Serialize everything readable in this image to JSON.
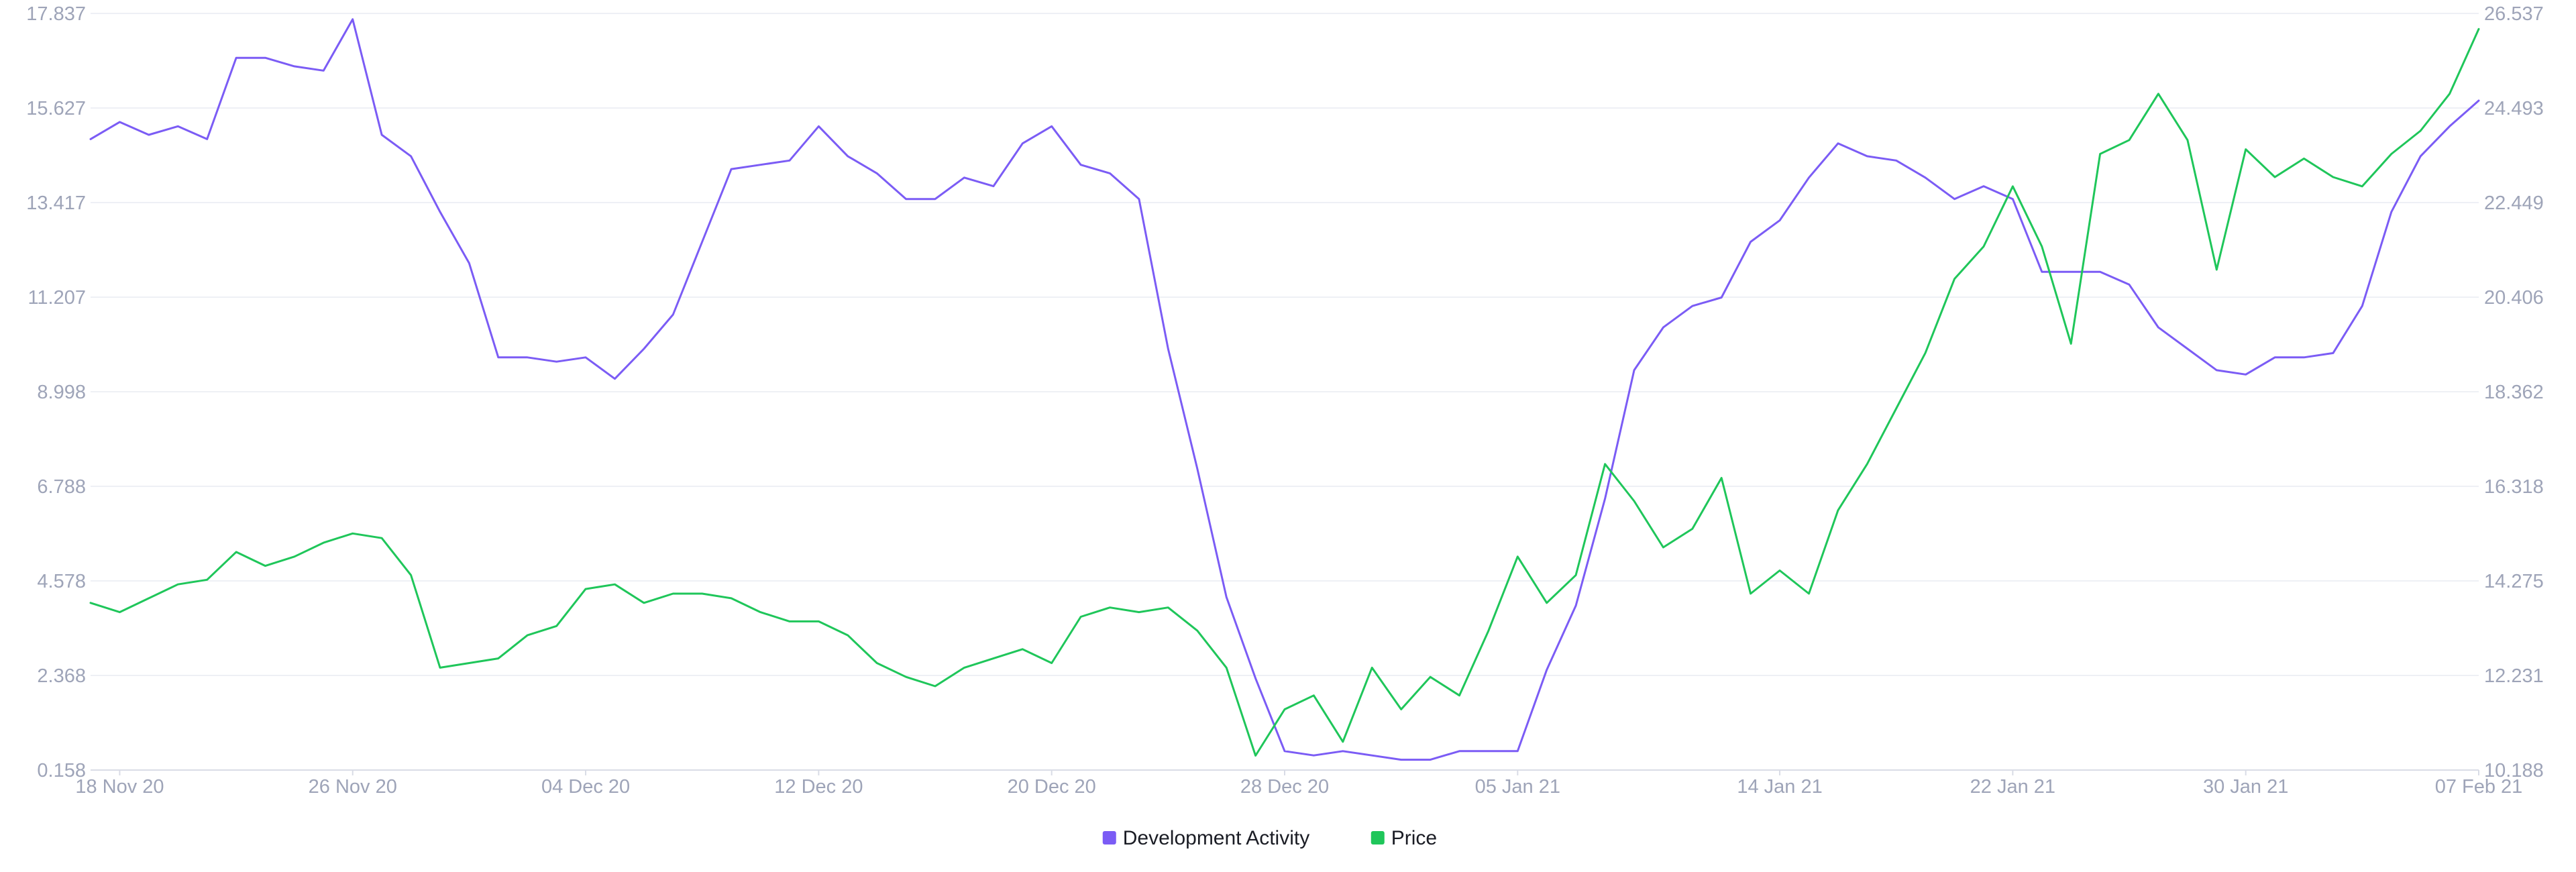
{
  "chart_data": {
    "type": "line",
    "x_axis": {
      "type": "date",
      "range": [
        "2020-11-17",
        "2021-02-07"
      ],
      "ticks": [
        {
          "date": "2020-11-18",
          "label": "18 Nov 20"
        },
        {
          "date": "2020-11-26",
          "label": "26 Nov 20"
        },
        {
          "date": "2020-12-04",
          "label": "04 Dec 20"
        },
        {
          "date": "2020-12-12",
          "label": "12 Dec 20"
        },
        {
          "date": "2020-12-20",
          "label": "20 Dec 20"
        },
        {
          "date": "2020-12-28",
          "label": "28 Dec 20"
        },
        {
          "date": "2021-01-05",
          "label": "05 Jan 21"
        },
        {
          "date": "2021-01-14",
          "label": "14 Jan 21"
        },
        {
          "date": "2021-01-22",
          "label": "22 Jan 21"
        },
        {
          "date": "2021-01-30",
          "label": "30 Jan 21"
        },
        {
          "date": "2021-02-07",
          "label": "07 Feb 21"
        }
      ]
    },
    "y_left": {
      "range": [
        0.158,
        17.837
      ],
      "tick_labels": [
        "0.158",
        "2.368",
        "4.578",
        "6.788",
        "8.998",
        "11.207",
        "13.417",
        "15.627",
        "17.837"
      ]
    },
    "y_right": {
      "range": [
        10.188,
        26.537
      ],
      "tick_labels": [
        "10.188",
        "12.231",
        "14.275",
        "16.318",
        "18.362",
        "20.406",
        "22.449",
        "24.493",
        "26.537"
      ]
    },
    "grid": "horizontal",
    "legend_position": "bottom-center",
    "series": [
      {
        "name": "Development Activity",
        "axis": "left",
        "color": "#7b5cf5",
        "points": [
          [
            "2020-11-17",
            14.9
          ],
          [
            "2020-11-18",
            15.3
          ],
          [
            "2020-11-19",
            15.0
          ],
          [
            "2020-11-20",
            15.2
          ],
          [
            "2020-11-21",
            14.9
          ],
          [
            "2020-11-22",
            16.8
          ],
          [
            "2020-11-23",
            16.8
          ],
          [
            "2020-11-24",
            16.6
          ],
          [
            "2020-11-25",
            16.5
          ],
          [
            "2020-11-26",
            17.7
          ],
          [
            "2020-11-27",
            15.0
          ],
          [
            "2020-11-28",
            14.5
          ],
          [
            "2020-11-29",
            13.2
          ],
          [
            "2020-11-30",
            12.0
          ],
          [
            "2020-12-01",
            9.8
          ],
          [
            "2020-12-02",
            9.8
          ],
          [
            "2020-12-03",
            9.7
          ],
          [
            "2020-12-04",
            9.8
          ],
          [
            "2020-12-05",
            9.3
          ],
          [
            "2020-12-06",
            10.0
          ],
          [
            "2020-12-07",
            10.8
          ],
          [
            "2020-12-08",
            12.5
          ],
          [
            "2020-12-09",
            14.2
          ],
          [
            "2020-12-10",
            14.3
          ],
          [
            "2020-12-11",
            14.4
          ],
          [
            "2020-12-12",
            15.2
          ],
          [
            "2020-12-13",
            14.5
          ],
          [
            "2020-12-14",
            14.1
          ],
          [
            "2020-12-15",
            13.5
          ],
          [
            "2020-12-16",
            13.5
          ],
          [
            "2020-12-17",
            14.0
          ],
          [
            "2020-12-18",
            13.8
          ],
          [
            "2020-12-19",
            14.8
          ],
          [
            "2020-12-20",
            15.2
          ],
          [
            "2020-12-21",
            14.3
          ],
          [
            "2020-12-22",
            14.1
          ],
          [
            "2020-12-23",
            13.5
          ],
          [
            "2020-12-24",
            10.0
          ],
          [
            "2020-12-25",
            7.2
          ],
          [
            "2020-12-26",
            4.2
          ],
          [
            "2020-12-27",
            2.3
          ],
          [
            "2020-12-28",
            0.6
          ],
          [
            "2020-12-29",
            0.5
          ],
          [
            "2020-12-30",
            0.6
          ],
          [
            "2020-12-31",
            0.5
          ],
          [
            "2021-01-01",
            0.4
          ],
          [
            "2021-01-02",
            0.4
          ],
          [
            "2021-01-03",
            0.6
          ],
          [
            "2021-01-04",
            0.6
          ],
          [
            "2021-01-05",
            0.6
          ],
          [
            "2021-01-06",
            2.5
          ],
          [
            "2021-01-07",
            4.0
          ],
          [
            "2021-01-08",
            6.5
          ],
          [
            "2021-01-09",
            9.5
          ],
          [
            "2021-01-10",
            10.5
          ],
          [
            "2021-01-11",
            11.0
          ],
          [
            "2021-01-12",
            11.2
          ],
          [
            "2021-01-13",
            12.5
          ],
          [
            "2021-01-14",
            13.0
          ],
          [
            "2021-01-15",
            14.0
          ],
          [
            "2021-01-16",
            14.8
          ],
          [
            "2021-01-17",
            14.5
          ],
          [
            "2021-01-18",
            14.4
          ],
          [
            "2021-01-19",
            14.0
          ],
          [
            "2021-01-20",
            13.5
          ],
          [
            "2021-01-21",
            13.8
          ],
          [
            "2021-01-22",
            13.5
          ],
          [
            "2021-01-23",
            11.8
          ],
          [
            "2021-01-24",
            11.8
          ],
          [
            "2021-01-25",
            11.8
          ],
          [
            "2021-01-26",
            11.5
          ],
          [
            "2021-01-27",
            10.5
          ],
          [
            "2021-01-28",
            10.0
          ],
          [
            "2021-01-29",
            9.5
          ],
          [
            "2021-01-30",
            9.4
          ],
          [
            "2021-01-31",
            9.8
          ],
          [
            "2021-02-01",
            9.8
          ],
          [
            "2021-02-02",
            9.9
          ],
          [
            "2021-02-03",
            11.0
          ],
          [
            "2021-02-04",
            13.2
          ],
          [
            "2021-02-05",
            14.5
          ],
          [
            "2021-02-06",
            15.2
          ],
          [
            "2021-02-07",
            15.8
          ]
        ]
      },
      {
        "name": "Price",
        "axis": "right",
        "color": "#1fc65a",
        "points": [
          [
            "2020-11-17",
            13.8
          ],
          [
            "2020-11-18",
            13.6
          ],
          [
            "2020-11-19",
            13.9
          ],
          [
            "2020-11-20",
            14.2
          ],
          [
            "2020-11-21",
            14.3
          ],
          [
            "2020-11-22",
            14.9
          ],
          [
            "2020-11-23",
            14.6
          ],
          [
            "2020-11-24",
            14.8
          ],
          [
            "2020-11-25",
            15.1
          ],
          [
            "2020-11-26",
            15.3
          ],
          [
            "2020-11-27",
            15.2
          ],
          [
            "2020-11-28",
            14.4
          ],
          [
            "2020-11-29",
            12.4
          ],
          [
            "2020-11-30",
            12.5
          ],
          [
            "2020-12-01",
            12.6
          ],
          [
            "2020-12-02",
            13.1
          ],
          [
            "2020-12-03",
            13.3
          ],
          [
            "2020-12-04",
            14.1
          ],
          [
            "2020-12-05",
            14.2
          ],
          [
            "2020-12-06",
            13.8
          ],
          [
            "2020-12-07",
            14.0
          ],
          [
            "2020-12-08",
            14.0
          ],
          [
            "2020-12-09",
            13.9
          ],
          [
            "2020-12-10",
            13.6
          ],
          [
            "2020-12-11",
            13.4
          ],
          [
            "2020-12-12",
            13.4
          ],
          [
            "2020-12-13",
            13.1
          ],
          [
            "2020-12-14",
            12.5
          ],
          [
            "2020-12-15",
            12.2
          ],
          [
            "2020-12-16",
            12.0
          ],
          [
            "2020-12-17",
            12.4
          ],
          [
            "2020-12-18",
            12.6
          ],
          [
            "2020-12-19",
            12.8
          ],
          [
            "2020-12-20",
            12.5
          ],
          [
            "2020-12-21",
            13.5
          ],
          [
            "2020-12-22",
            13.7
          ],
          [
            "2020-12-23",
            13.6
          ],
          [
            "2020-12-24",
            13.7
          ],
          [
            "2020-12-25",
            13.2
          ],
          [
            "2020-12-26",
            12.4
          ],
          [
            "2020-12-27",
            10.5
          ],
          [
            "2020-12-28",
            11.5
          ],
          [
            "2020-12-29",
            11.8
          ],
          [
            "2020-12-30",
            10.8
          ],
          [
            "2020-12-31",
            12.4
          ],
          [
            "2021-01-01",
            11.5
          ],
          [
            "2021-01-02",
            12.2
          ],
          [
            "2021-01-03",
            11.8
          ],
          [
            "2021-01-04",
            13.2
          ],
          [
            "2021-01-05",
            14.8
          ],
          [
            "2021-01-06",
            13.8
          ],
          [
            "2021-01-07",
            14.4
          ],
          [
            "2021-01-08",
            16.8
          ],
          [
            "2021-01-09",
            16.0
          ],
          [
            "2021-01-10",
            15.0
          ],
          [
            "2021-01-11",
            15.4
          ],
          [
            "2021-01-12",
            16.5
          ],
          [
            "2021-01-13",
            14.0
          ],
          [
            "2021-01-14",
            14.5
          ],
          [
            "2021-01-15",
            14.0
          ],
          [
            "2021-01-16",
            15.8
          ],
          [
            "2021-01-17",
            16.8
          ],
          [
            "2021-01-18",
            18.0
          ],
          [
            "2021-01-19",
            19.2
          ],
          [
            "2021-01-20",
            20.8
          ],
          [
            "2021-01-21",
            21.5
          ],
          [
            "2021-01-22",
            22.8
          ],
          [
            "2021-01-23",
            21.5
          ],
          [
            "2021-01-24",
            19.4
          ],
          [
            "2021-01-25",
            23.5
          ],
          [
            "2021-01-26",
            23.8
          ],
          [
            "2021-01-27",
            24.8
          ],
          [
            "2021-01-28",
            23.8
          ],
          [
            "2021-01-29",
            21.0
          ],
          [
            "2021-01-30",
            23.6
          ],
          [
            "2021-01-31",
            23.0
          ],
          [
            "2021-02-01",
            23.4
          ],
          [
            "2021-02-02",
            23.0
          ],
          [
            "2021-02-03",
            22.8
          ],
          [
            "2021-02-04",
            23.5
          ],
          [
            "2021-02-05",
            24.0
          ],
          [
            "2021-02-06",
            24.8
          ],
          [
            "2021-02-07",
            26.2
          ]
        ]
      }
    ]
  }
}
